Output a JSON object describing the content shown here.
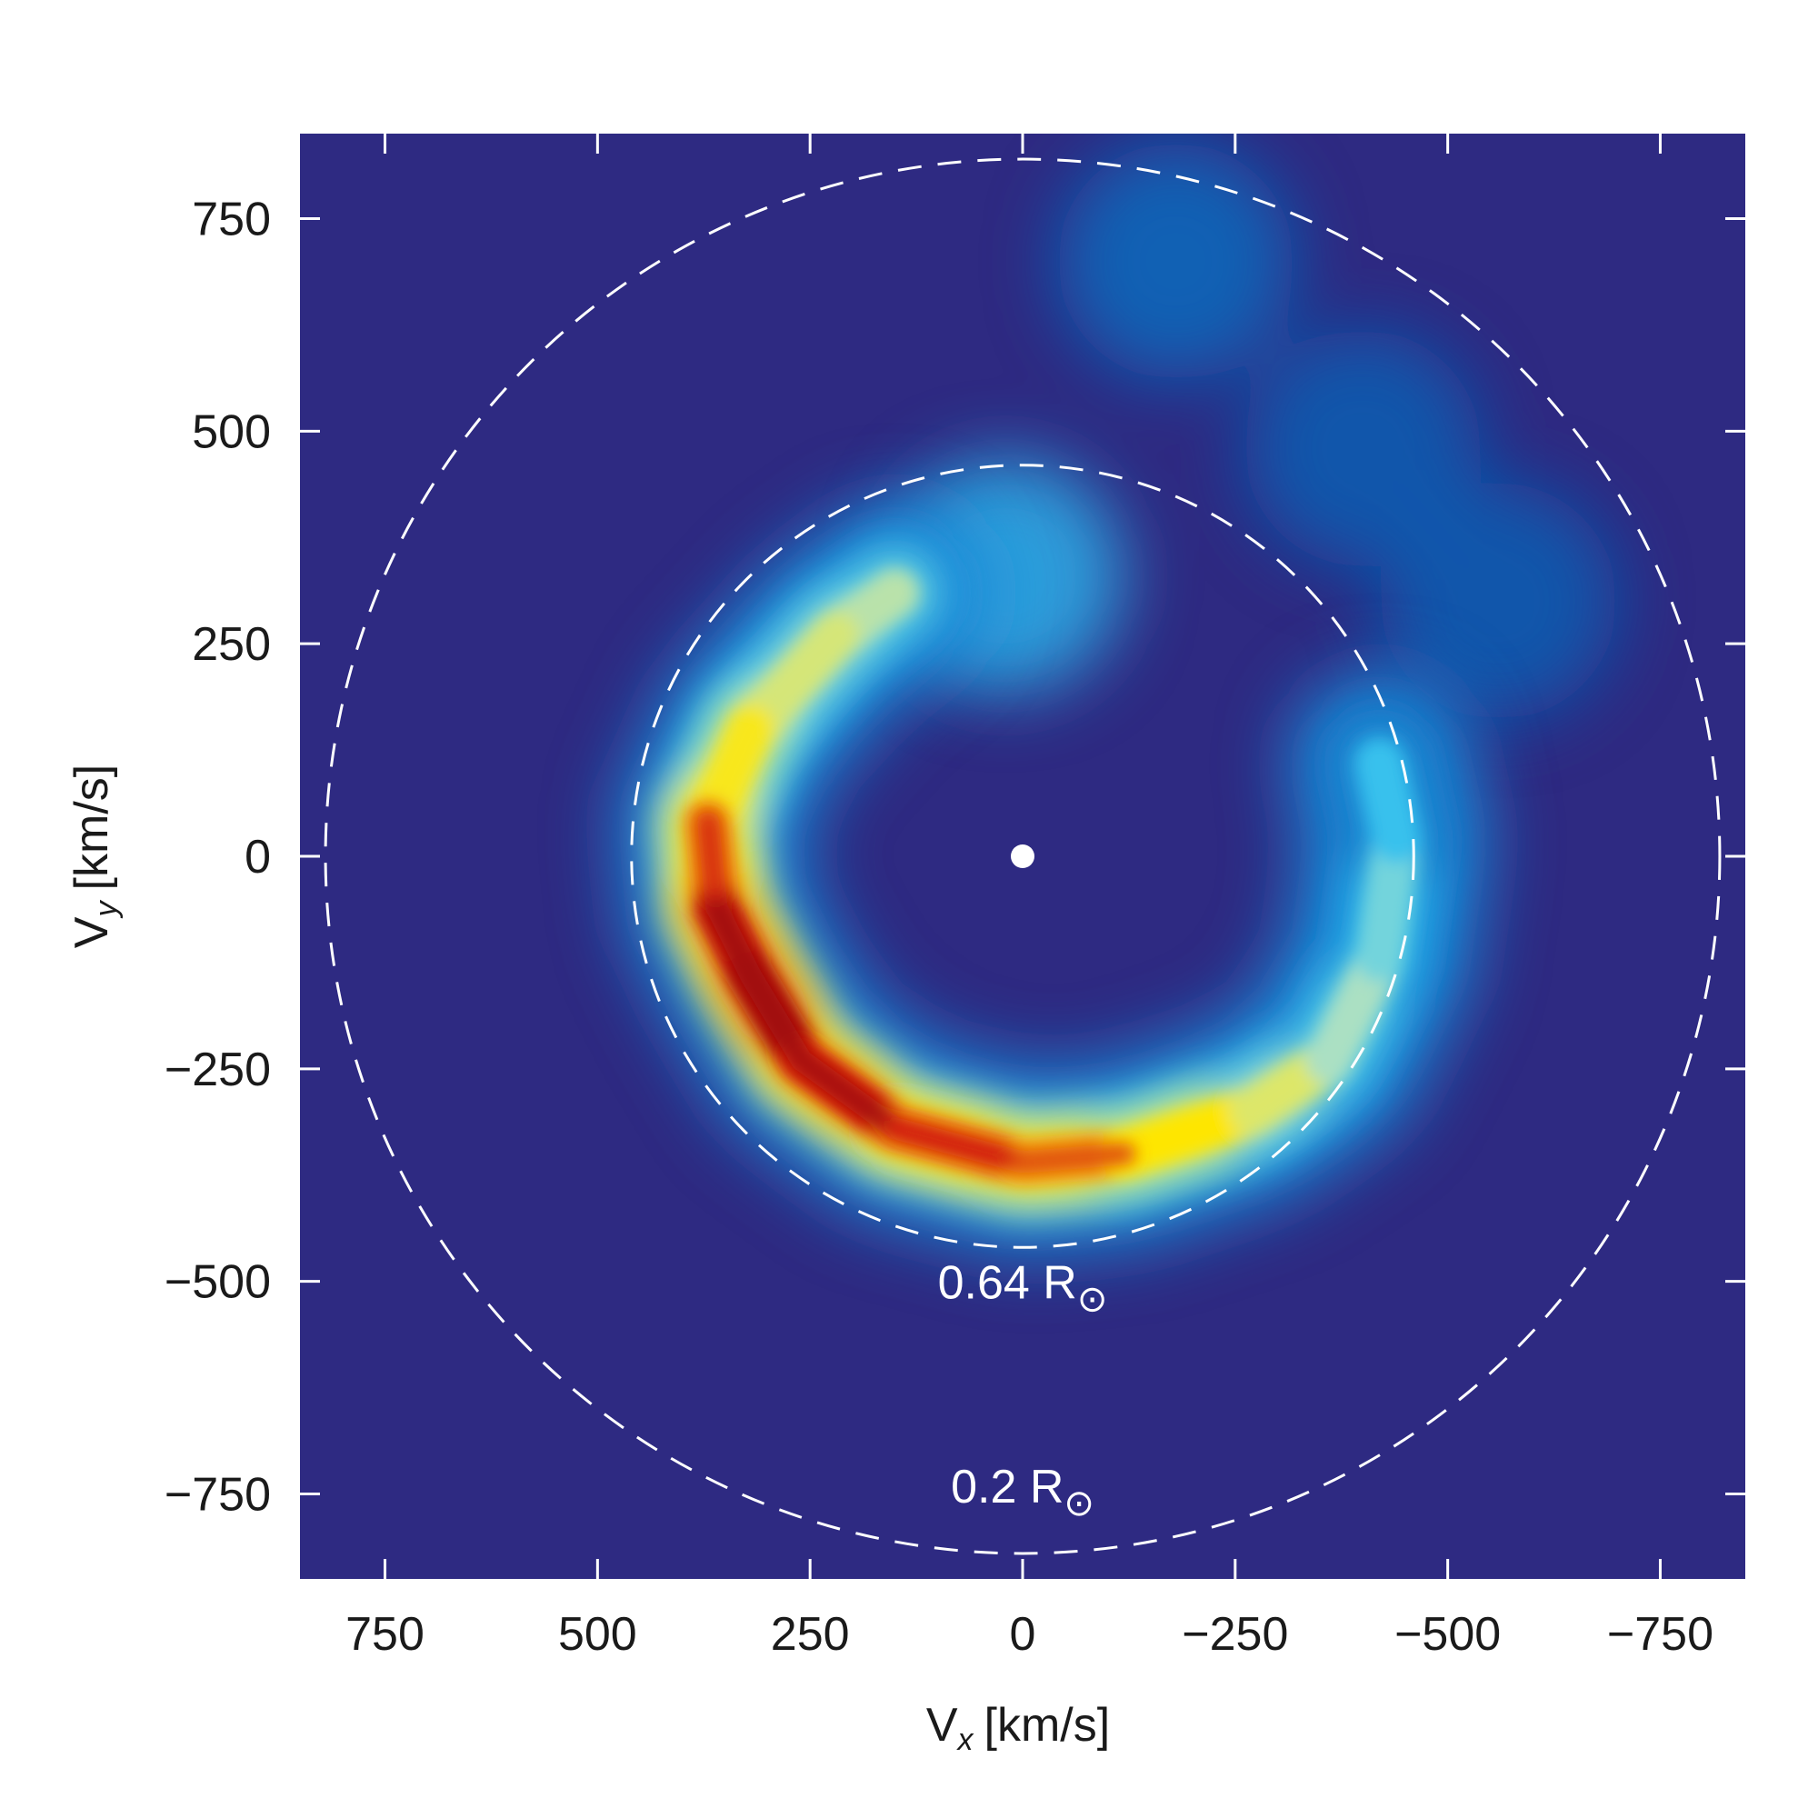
{
  "chart_data": {
    "type": "heatmap",
    "title": "",
    "xlabel": {
      "main": "V",
      "sub": "x",
      "unit": "[km/s]"
    },
    "ylabel": {
      "main": "V",
      "sub": "y",
      "unit": "[km/s]"
    },
    "xlim": [
      850,
      -850
    ],
    "ylim": [
      -850,
      850
    ],
    "x_ticks": [
      750,
      500,
      250,
      0,
      -250,
      -500,
      -750
    ],
    "y_ticks": [
      750,
      500,
      250,
      0,
      -250,
      -500,
      -750
    ],
    "x_tick_labels": [
      "750",
      "500",
      "250",
      "0",
      "−250",
      "−500",
      "−750"
    ],
    "y_tick_labels": [
      "750",
      "500",
      "250",
      "0",
      "−250",
      "−500",
      "−750"
    ],
    "background_color": "#2e2a82",
    "colormap": [
      "#2e2a82",
      "#0a4aa0",
      "#1a8ad8",
      "#3cc8f0",
      "#a8e0c8",
      "#e6e85a",
      "#ffe600",
      "#f08a10",
      "#d42010",
      "#a00a0a"
    ],
    "rings": [
      {
        "radius": 460,
        "label": "0.64 R",
        "symbol": "⊙",
        "label_at": [
          0,
          -520
        ]
      },
      {
        "radius": 820,
        "label": "0.2 R",
        "symbol": "⊙",
        "label_at": [
          0,
          -760
        ]
      }
    ],
    "center_marker": {
      "x": 0,
      "y": 0
    },
    "emission_ring": {
      "description_points": [
        {
          "angle_deg": -270,
          "vx": 150,
          "vy": 310,
          "intensity": 0.45
        },
        {
          "angle_deg": -245,
          "vx": 220,
          "vy": 260,
          "intensity": 0.5
        },
        {
          "angle_deg": -225,
          "vx": 320,
          "vy": 150,
          "intensity": 0.55
        },
        {
          "angle_deg": -200,
          "vx": 370,
          "vy": 40,
          "intensity": 0.72
        },
        {
          "angle_deg": -180,
          "vx": 360,
          "vy": -60,
          "intensity": 0.85
        },
        {
          "angle_deg": -160,
          "vx": 320,
          "vy": -140,
          "intensity": 1.0
        },
        {
          "angle_deg": -140,
          "vx": 260,
          "vy": -240,
          "intensity": 0.95
        },
        {
          "angle_deg": -120,
          "vx": 150,
          "vy": -320,
          "intensity": 0.82
        },
        {
          "angle_deg": -95,
          "vx": 0,
          "vy": -360,
          "intensity": 0.78
        },
        {
          "angle_deg": -80,
          "vx": -120,
          "vy": -350,
          "intensity": 0.72
        },
        {
          "angle_deg": -60,
          "vx": -270,
          "vy": -300,
          "intensity": 0.6
        },
        {
          "angle_deg": -45,
          "vx": -360,
          "vy": -240,
          "intensity": 0.48
        },
        {
          "angle_deg": -25,
          "vx": -420,
          "vy": -120,
          "intensity": 0.42
        },
        {
          "angle_deg": -5,
          "vx": -440,
          "vy": 20,
          "intensity": 0.36
        },
        {
          "angle_deg": 10,
          "vx": -420,
          "vy": 110,
          "intensity": 0.28
        }
      ],
      "faint_halo": [
        {
          "vx": -180,
          "vy": 700,
          "intensity": 0.16
        },
        {
          "vx": -400,
          "vy": 480,
          "intensity": 0.14
        },
        {
          "vx": -560,
          "vy": 300,
          "intensity": 0.14
        },
        {
          "vx": 20,
          "vy": 330,
          "intensity": 0.28
        }
      ]
    }
  }
}
